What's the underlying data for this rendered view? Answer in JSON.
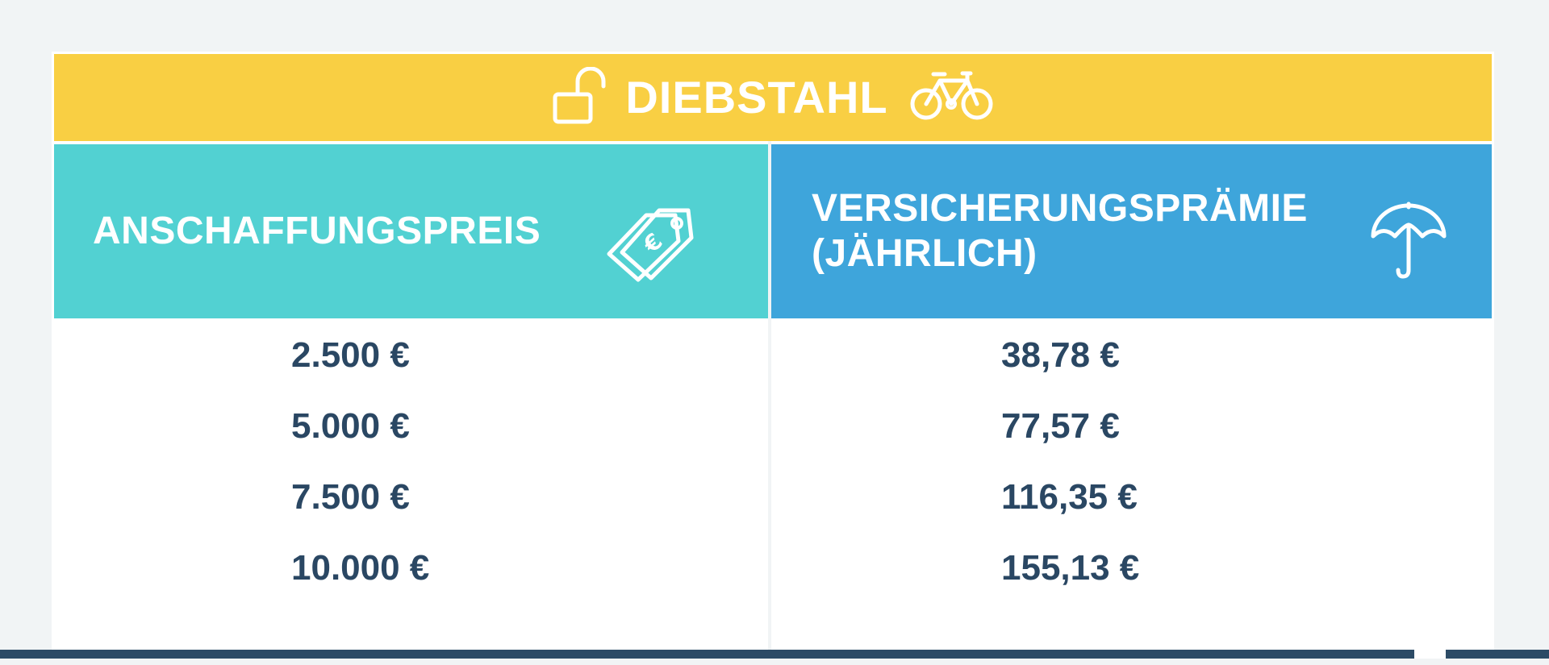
{
  "table": {
    "title": "DIEBSTAHL",
    "icons": {
      "title_left": "unlocked-padlock-icon",
      "title_right": "bicycle-icon",
      "column_left": "euro-price-tag-icon",
      "column_right": "umbrella-icon"
    },
    "columns": [
      {
        "header": "ANSCHAFFUNGSPREIS"
      },
      {
        "header_line1": "VERSICHERUNGSPRÄMIE",
        "header_line2": "(JÄHRLICH)"
      }
    ],
    "rows": [
      {
        "price": "2.500 €",
        "premium": "38,78 €"
      },
      {
        "price": "5.000 €",
        "premium": "77,57 €"
      },
      {
        "price": "7.500 €",
        "premium": "116,35 €"
      },
      {
        "price": "10.000 €",
        "premium": "155,13 €"
      }
    ]
  },
  "colors": {
    "background": "#f1f4f5",
    "title_bar": "#f9cf43",
    "header_left": "#52d1d2",
    "header_right": "#3ea5db",
    "value_text": "#2a4763",
    "bottom_bar": "#2c4b66"
  }
}
